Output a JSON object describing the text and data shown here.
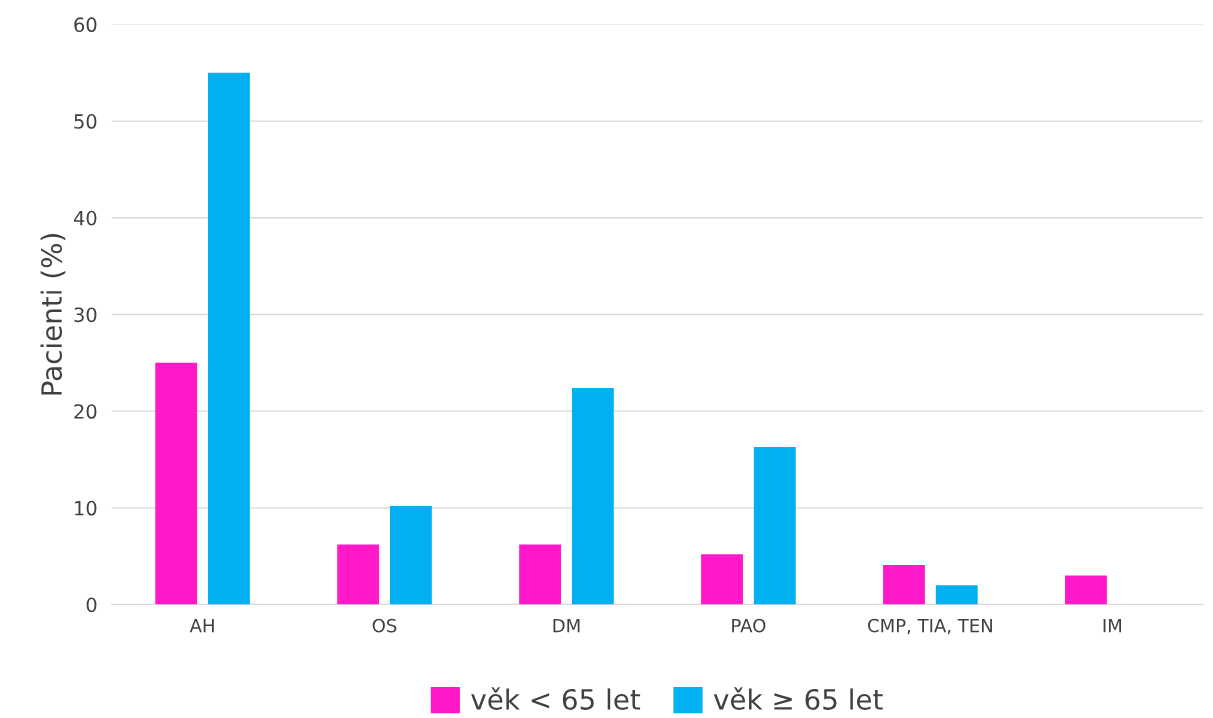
{
  "chart_data": {
    "type": "bar",
    "ylabel": "Pacienti (%)",
    "categories": [
      "AH",
      "OS",
      "DM",
      "PAO",
      "CMP, TIA, TEN",
      "IM"
    ],
    "series": [
      {
        "name": "věk < 65 let",
        "color": "#ff19c8",
        "values": [
          25,
          6.2,
          6.2,
          5.2,
          4.1,
          3.0
        ]
      },
      {
        "name": "věk ≥ 65 let",
        "color": "#00b0f0",
        "values": [
          55,
          10.2,
          22.4,
          16.3,
          2.0,
          0
        ]
      }
    ],
    "ylim": [
      0,
      60
    ],
    "yticks": [
      0,
      10,
      20,
      30,
      40,
      50,
      60
    ],
    "grid": "y",
    "legend": "bottom"
  }
}
